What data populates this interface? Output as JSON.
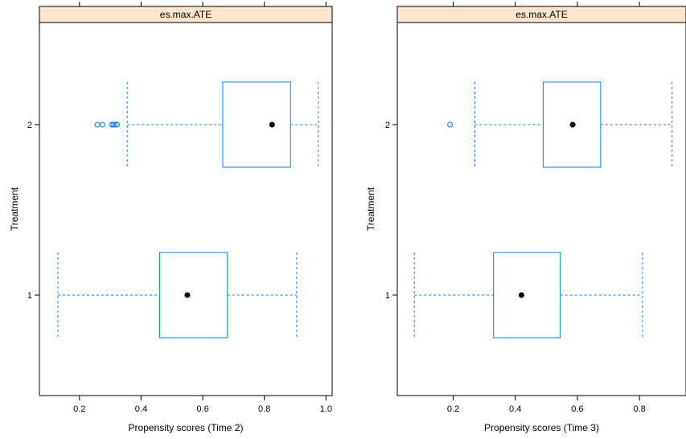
{
  "chart_data": [
    {
      "type": "boxplot",
      "strip_label": "es.max.ATE",
      "xlabel": "Propensity scores (Time 2)",
      "ylabel": "Treatment",
      "xlim": [
        0.07,
        1.02
      ],
      "x_ticks": [
        0.2,
        0.4,
        0.6,
        0.8,
        1.0
      ],
      "x_tick_labels": [
        "0.2",
        "0.4",
        "0.6",
        "0.8",
        "1.0"
      ],
      "categories": [
        "1",
        "2"
      ],
      "boxes": [
        {
          "group": "1",
          "whisker_low": 0.13,
          "q1": 0.46,
          "median": 0.55,
          "q3": 0.68,
          "whisker_high": 0.905,
          "outliers": []
        },
        {
          "group": "2",
          "whisker_low": 0.355,
          "q1": 0.665,
          "median": 0.825,
          "q3": 0.885,
          "whisker_high": 0.975,
          "outliers": [
            0.258,
            0.275,
            0.305,
            0.31,
            0.315,
            0.322
          ]
        }
      ],
      "colors": {
        "box": "#0080ff",
        "median_dot": "#000000",
        "strip": "#ffe5cc"
      }
    },
    {
      "type": "boxplot",
      "strip_label": "es.max.ATE",
      "xlabel": "Propensity scores (Time 3)",
      "ylabel": "Treatment",
      "xlim": [
        0.02,
        0.95
      ],
      "x_ticks": [
        0.2,
        0.4,
        0.6,
        0.8
      ],
      "x_tick_labels": [
        "0.2",
        "0.4",
        "0.6",
        "0.8"
      ],
      "categories": [
        "1",
        "2"
      ],
      "boxes": [
        {
          "group": "1",
          "whisker_low": 0.075,
          "q1": 0.33,
          "median": 0.42,
          "q3": 0.545,
          "whisker_high": 0.81,
          "outliers": []
        },
        {
          "group": "2",
          "whisker_low": 0.27,
          "q1": 0.49,
          "median": 0.585,
          "q3": 0.675,
          "whisker_high": 0.905,
          "outliers": [
            0.19
          ]
        }
      ],
      "colors": {
        "box": "#0080ff",
        "median_dot": "#000000",
        "strip": "#ffe5cc"
      }
    }
  ]
}
